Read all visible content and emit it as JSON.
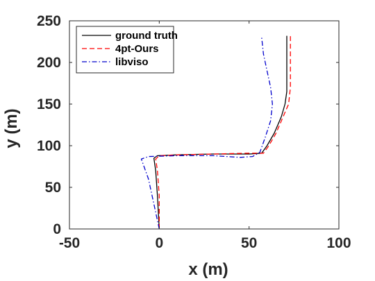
{
  "chart_data": {
    "type": "line",
    "xlabel": "x (m)",
    "ylabel": "y (m)",
    "xlim": [
      -50,
      100
    ],
    "ylim": [
      0,
      250
    ],
    "xticks": [
      -50,
      0,
      50,
      100
    ],
    "yticks": [
      0,
      50,
      100,
      150,
      200,
      250
    ],
    "grid": false,
    "legend_position": "top-left",
    "series": [
      {
        "name": "ground truth",
        "color": "#000000",
        "style": "solid",
        "points": [
          [
            0,
            0
          ],
          [
            -1,
            40
          ],
          [
            -2,
            70
          ],
          [
            -3,
            85
          ],
          [
            -1,
            88
          ],
          [
            10,
            89
          ],
          [
            30,
            90
          ],
          [
            50,
            90
          ],
          [
            57,
            91
          ],
          [
            60,
            100
          ],
          [
            64,
            115
          ],
          [
            68,
            135
          ],
          [
            70,
            150
          ],
          [
            71,
            165
          ],
          [
            71,
            190
          ],
          [
            71,
            210
          ],
          [
            71,
            232
          ]
        ]
      },
      {
        "name": "4pt-Ours",
        "color": "#ff0000",
        "style": "dashed",
        "points": [
          [
            0,
            0
          ],
          [
            0,
            40
          ],
          [
            -1,
            70
          ],
          [
            -2,
            84
          ],
          [
            0,
            88
          ],
          [
            10,
            89
          ],
          [
            30,
            90
          ],
          [
            50,
            91
          ],
          [
            58,
            91
          ],
          [
            61,
            100
          ],
          [
            65,
            115
          ],
          [
            69,
            135
          ],
          [
            72,
            150
          ],
          [
            73,
            170
          ],
          [
            73,
            190
          ],
          [
            73,
            212
          ],
          [
            73,
            232
          ]
        ]
      },
      {
        "name": "libviso",
        "color": "#0000cc",
        "style": "dashdot",
        "points": [
          [
            0,
            0
          ],
          [
            -3,
            30
          ],
          [
            -6,
            60
          ],
          [
            -10,
            84
          ],
          [
            -6,
            87
          ],
          [
            10,
            88
          ],
          [
            30,
            88
          ],
          [
            45,
            86
          ],
          [
            52,
            87
          ],
          [
            56,
            92
          ],
          [
            59,
            110
          ],
          [
            62,
            130
          ],
          [
            63,
            150
          ],
          [
            62,
            170
          ],
          [
            60,
            190
          ],
          [
            58,
            210
          ],
          [
            57,
            230
          ]
        ]
      }
    ]
  }
}
